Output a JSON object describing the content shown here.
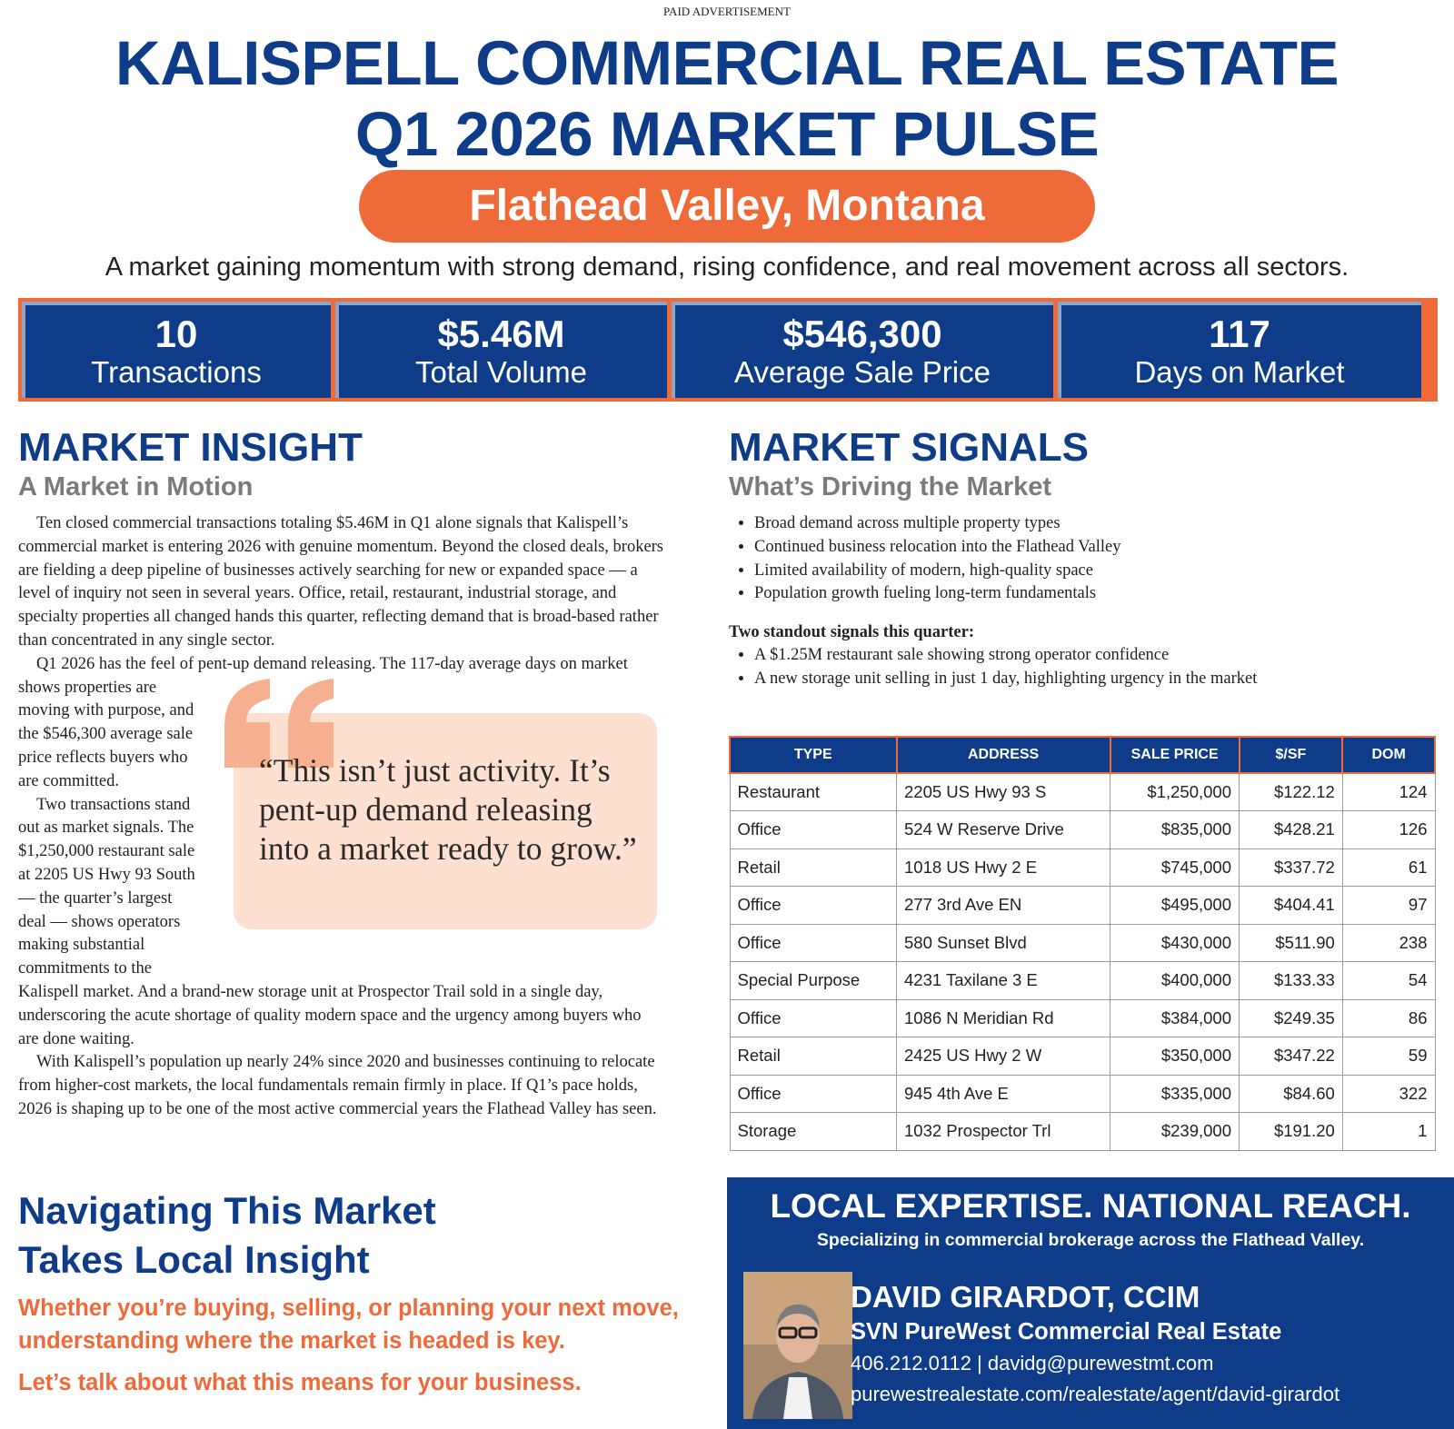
{
  "header": {
    "label": "PAID ADVERTISEMENT",
    "title_lines": [
      "KALISPELL COMMERCIAL REAL ESTATE",
      "Q1 2026 MARKET PULSE"
    ],
    "location": "Flathead Valley, Montana",
    "tagline": "A market gaining momentum with strong demand, rising confidence, and real movement across all sectors."
  },
  "stats": [
    {
      "value": "10",
      "label": "Transactions"
    },
    {
      "value": "$5.46M",
      "label": "Total Volume"
    },
    {
      "value": "$546,300",
      "label": "Average Sale Price"
    },
    {
      "value": "117",
      "label": "Days on Market"
    }
  ],
  "insight": {
    "heading": "MARKET INSIGHT",
    "subheading": "A Market in Motion",
    "paragraphs": [
      "Ten closed commercial transactions totaling $5.46M in Q1 alone signals that Kalispell’s commercial market is entering 2026 with genuine momentum. Beyond the closed deals, brokers are fielding a deep pipeline of businesses actively searching for new or expanded space — a level of inquiry not seen in several years. Office, retail, restaurant, industrial storage, and specialty properties all changed hands this quarter, reflecting demand that is broad-based rather than concentrated in any single sector.",
      "Q1 2026 has the feel of pent-up demand releasing. The 117-day average days on market shows properties are moving with purpose, and the $546,300 average sale price reflects buyers who are committed.",
      "Two transactions stand out as market signals. The $1,250,000 restaurant sale at 2205 US Hwy 93 South — the quarter’s largest deal — shows operators making substantial commitments to the Kalispell market. And a brand-new storage unit at Prospector Trail sold in a single day, underscoring the acute shortage of quality modern space and the urgency among buyers who are done waiting.",
      "With Kalispell’s population up nearly 24% since 2020 and businesses continuing to relocate from higher-cost markets, the local fundamentals remain firmly in place. If Q1’s pace holds, 2026 is shaping up to be one of the most active commercial years the Flathead Valley has seen."
    ],
    "quote": "“This isn’t just activity. It’s pent-up demand releasing into a market ready to grow.”"
  },
  "signals": {
    "heading": "MARKET SIGNALS",
    "subheading": "What’s Driving the Market",
    "bullets": [
      "Broad demand across multiple property types",
      "Continued business relocation into the Flathead Valley",
      "Limited availability of modern, high-quality space",
      "Population growth fueling long-term fundamentals"
    ],
    "standout_heading": "Two standout signals this quarter:",
    "standout_bullets": [
      "A $1.25M restaurant sale showing strong operator confidence",
      "A new storage unit selling in just 1 day, highlighting urgency in the market"
    ]
  },
  "table": {
    "columns": [
      "TYPE",
      "ADDRESS",
      "SALE PRICE",
      "$/SF",
      "DOM"
    ],
    "rows": [
      [
        "Restaurant",
        "2205 US Hwy 93 S",
        "$1,250,000",
        "$122.12",
        "124"
      ],
      [
        "Office",
        "524 W Reserve Drive",
        "$835,000",
        "$428.21",
        "126"
      ],
      [
        "Retail",
        "1018 US Hwy 2 E",
        "$745,000",
        "$337.72",
        "61"
      ],
      [
        "Office",
        "277 3rd Ave EN",
        "$495,000",
        "$404.41",
        "97"
      ],
      [
        "Office",
        "580 Sunset Blvd",
        "$430,000",
        "$511.90",
        "238"
      ],
      [
        "Special Purpose",
        "4231 Taxilane 3 E",
        "$400,000",
        "$133.33",
        "54"
      ],
      [
        "Office",
        "1086 N Meridian Rd",
        "$384,000",
        "$249.35",
        "86"
      ],
      [
        "Retail",
        "2425 US Hwy 2 W",
        "$350,000",
        "$347.22",
        "59"
      ],
      [
        "Office",
        "945 4th Ave E",
        "$335,000",
        "$84.60",
        "322"
      ],
      [
        "Storage",
        "1032 Prospector Trl",
        "$239,000",
        "$191.20",
        "1"
      ]
    ]
  },
  "cta": {
    "heading_lines": [
      "Navigating This Market",
      "Takes Local Insight"
    ],
    "body": "Whether you’re buying, selling, or planning your next move, understanding where the market is headed is key.",
    "closing": "Let’s talk about what this means for your business."
  },
  "contact": {
    "heading": "LOCAL EXPERTISE. NATIONAL REACH.",
    "subheading": "Specializing in commercial brokerage across the Flathead Valley.",
    "name": "DAVID GIRARDOT, CCIM",
    "company": "SVN PureWest Commercial Real Estate",
    "contact_line": "406.212.0112 | davidg@purewestmt.com",
    "url": "purewestrealestate.com/realestate/agent/david-girardot"
  }
}
